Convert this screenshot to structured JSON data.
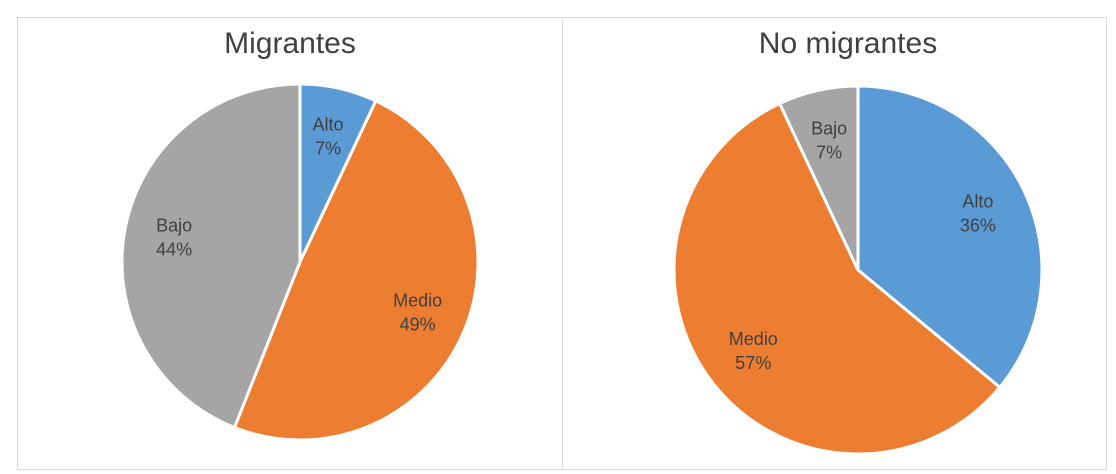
{
  "chart_data": [
    {
      "type": "pie",
      "title": "Migrantes",
      "categories": [
        "Alto",
        "Medio",
        "Bajo"
      ],
      "values": [
        7,
        49,
        44
      ],
      "value_labels": [
        "7%",
        "49%",
        "44%"
      ],
      "colors": [
        "#5b9bd5",
        "#ed7d31",
        "#a5a5a5"
      ]
    },
    {
      "type": "pie",
      "title": "No migrantes",
      "categories": [
        "Alto",
        "Medio",
        "Bajo"
      ],
      "values": [
        36,
        57,
        7
      ],
      "value_labels": [
        "36%",
        "57%",
        "7%"
      ],
      "colors": [
        "#5b9bd5",
        "#ed7d31",
        "#a5a5a5"
      ]
    }
  ]
}
